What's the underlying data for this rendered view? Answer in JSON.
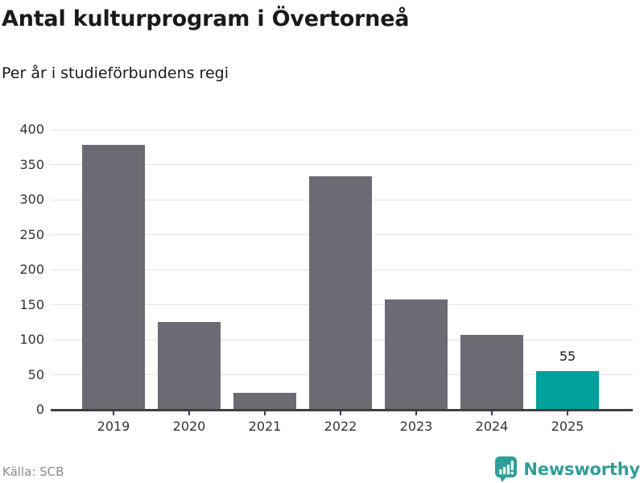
{
  "header": {
    "title": "Antal kulturprogram i Övertorneå",
    "subtitle": "Per år i studieförbundens regi"
  },
  "chart_data": {
    "type": "bar",
    "title": "Antal kulturprogram i Övertorneå",
    "subtitle": "Per år i studieförbundens regi",
    "categories": [
      "2019",
      "2020",
      "2021",
      "2022",
      "2023",
      "2024",
      "2025"
    ],
    "values": [
      378,
      125,
      24,
      333,
      158,
      107,
      55
    ],
    "highlight_index": 6,
    "annotated_indices": [
      6
    ],
    "annotation_labels": [
      "55"
    ],
    "xlabel": "",
    "ylabel": "",
    "ylim": [
      0,
      400
    ],
    "yticks": [
      0,
      50,
      100,
      150,
      200,
      250,
      300,
      350,
      400
    ],
    "grid": true,
    "legend_position": "none"
  },
  "footer": {
    "source": "Källa: SCB",
    "brand": "Newsworthy",
    "brand_icon": "bar-chart-speech-bubble"
  },
  "colors": {
    "bar": "#6c6a72",
    "highlight": "#00a09b",
    "grid": "#e2e2e2",
    "axis": "#3f3f3f",
    "text": "#1a1a1a",
    "tick_label": "#333333",
    "source_text": "#8c8c8c",
    "brand": "#2f9e96"
  }
}
